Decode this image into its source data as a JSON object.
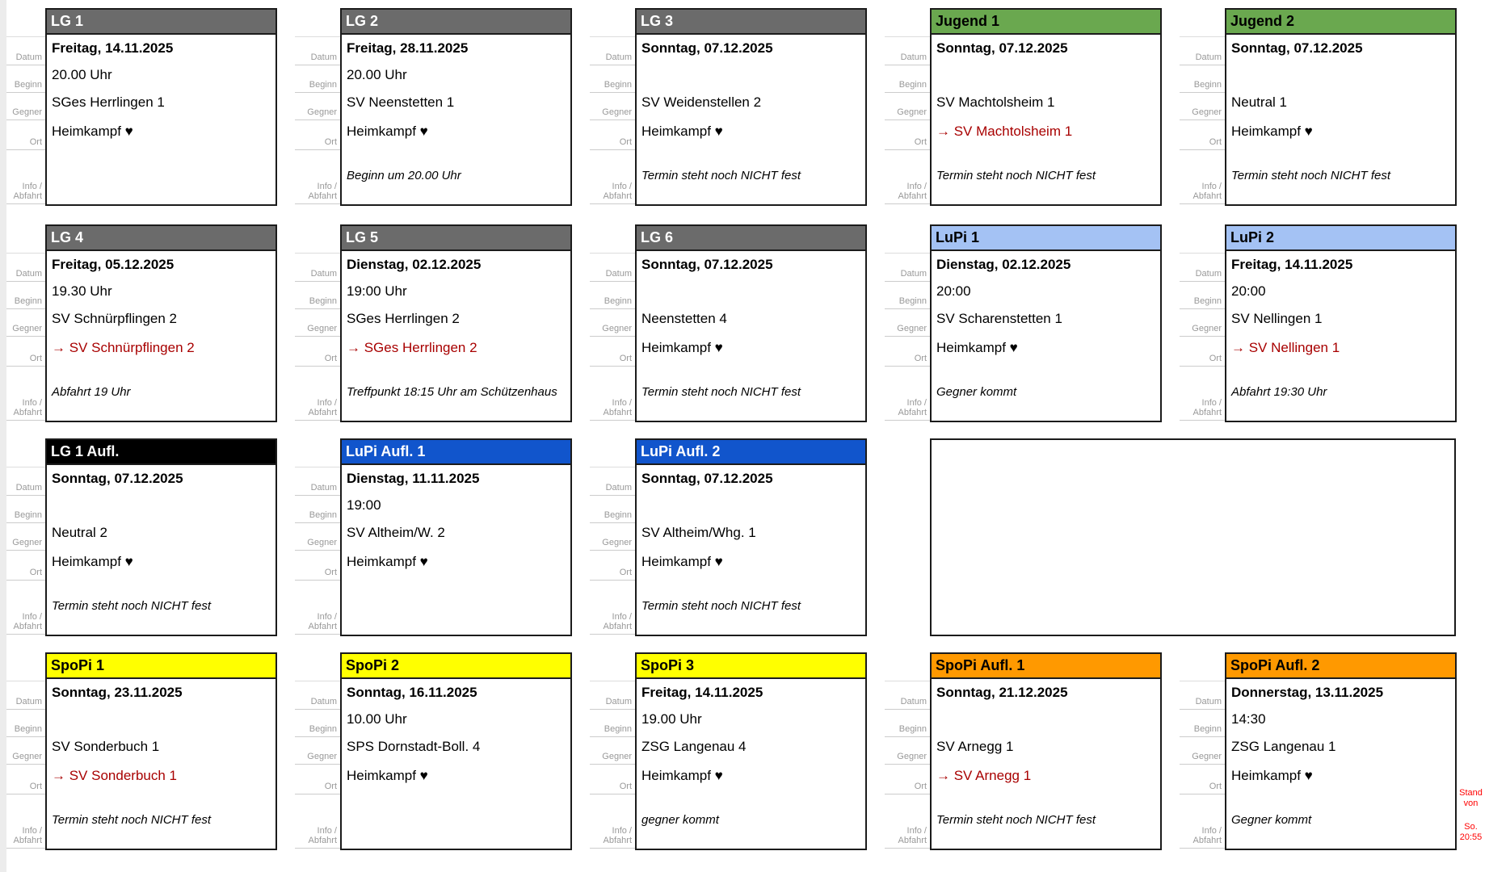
{
  "colors": {
    "header_gray": "#6b6b6b",
    "header_black": "#000000",
    "header_green": "#6aa84f",
    "header_lightblue": "#a4c2f4",
    "header_blue": "#1155cc",
    "header_yellow": "#ffff00",
    "header_orange": "#ff9900",
    "away_red": "#a80000",
    "note_red": "#ff0000",
    "label_gray": "#999999"
  },
  "row_labels": {
    "datum": "Datum",
    "beginn": "Beginn",
    "gegner": "Gegner",
    "ort": "Ort",
    "info_line1": "Info /",
    "info_line2": "Abfahrt"
  },
  "stand_note": {
    "part1": "Stand von",
    "part2": "So. 20:55"
  },
  "cards": [
    {
      "title": "LG 1",
      "datum": "Freitag, 14.11.2025",
      "beginn": "20.00 Uhr",
      "gegner": "SGes Herrlingen 1",
      "ort": "Heimkampf ♥",
      "info": ""
    },
    {
      "title": "LG 2",
      "datum": "Freitag, 28.11.2025",
      "beginn": "20.00 Uhr",
      "gegner": "SV Neenstetten 1",
      "ort": "Heimkampf ♥",
      "info": "Beginn um 20.00 Uhr"
    },
    {
      "title": "LG 3",
      "datum": "Sonntag, 07.12.2025",
      "beginn": "",
      "gegner": "SV Weidenstellen 2",
      "ort": "Heimkampf ♥",
      "info": "Termin steht noch NICHT fest"
    },
    {
      "title": "Jugend 1",
      "datum": "Sonntag, 07.12.2025",
      "beginn": "",
      "gegner": "SV Machtolsheim 1",
      "ort": "→ SV Machtolsheim 1",
      "info": "Termin steht noch NICHT fest"
    },
    {
      "title": "Jugend 2",
      "datum": "Sonntag, 07.12.2025",
      "beginn": "",
      "gegner": "Neutral 1",
      "ort": "Heimkampf ♥",
      "info": "Termin steht noch NICHT fest"
    },
    {
      "title": "LG 4",
      "datum": "Freitag, 05.12.2025",
      "beginn": "19.30 Uhr",
      "gegner": "SV Schnürpflingen 2",
      "ort": "→ SV Schnürpflingen 2",
      "info": "Abfahrt 19 Uhr"
    },
    {
      "title": "LG 5",
      "datum": "Dienstag, 02.12.2025",
      "beginn": "19:00 Uhr",
      "gegner": "SGes Herrlingen 2",
      "ort": "→ SGes Herrlingen 2",
      "info": "Treffpunkt 18:15 Uhr am Schützenhaus"
    },
    {
      "title": "LG 6",
      "datum": "Sonntag, 07.12.2025",
      "beginn": "",
      "gegner": "Neenstetten 4",
      "ort": "Heimkampf ♥",
      "info": "Termin steht noch NICHT fest"
    },
    {
      "title": "LuPi 1",
      "datum": "Dienstag, 02.12.2025",
      "beginn": "20:00",
      "gegner": "SV Scharenstetten 1",
      "ort": "Heimkampf ♥",
      "info": "Gegner kommt"
    },
    {
      "title": "LuPi 2",
      "datum": "Freitag, 14.11.2025",
      "beginn": "20:00",
      "gegner": "SV Nellingen 1",
      "ort": "→ SV Nellingen 1",
      "info": "Abfahrt 19:30 Uhr"
    },
    {
      "title": "LG 1 Aufl.",
      "datum": "Sonntag, 07.12.2025",
      "beginn": "",
      "gegner": "Neutral 2",
      "ort": "Heimkampf ♥",
      "info": "Termin steht noch NICHT fest"
    },
    {
      "title": "LuPi Aufl. 1",
      "datum": "Dienstag, 11.11.2025",
      "beginn": "19:00",
      "gegner": "SV Altheim/W. 2",
      "ort": "Heimkampf ♥",
      "info": ""
    },
    {
      "title": "LuPi Aufl. 2",
      "datum": "Sonntag, 07.12.2025",
      "beginn": "",
      "gegner": "SV Altheim/Whg. 1",
      "ort": "Heimkampf ♥",
      "info": "Termin steht noch NICHT fest"
    },
    {
      "title": "SpoPi 1",
      "datum": "Sonntag, 23.11.2025",
      "beginn": "",
      "gegner": "SV Sonderbuch 1",
      "ort": "→ SV Sonderbuch 1",
      "info": "Termin steht noch NICHT fest"
    },
    {
      "title": "SpoPi 2",
      "datum": "Sonntag, 16.11.2025",
      "beginn": "10.00 Uhr",
      "gegner": "SPS Dornstadt-Boll. 4",
      "ort": "Heimkampf ♥",
      "info": ""
    },
    {
      "title": "SpoPi 3",
      "datum": "Freitag, 14.11.2025",
      "beginn": "19.00 Uhr",
      "gegner": "ZSG Langenau 4",
      "ort": "Heimkampf ♥",
      "info": "gegner kommt"
    },
    {
      "title": "SpoPi Aufl. 1",
      "datum": "Sonntag, 21.12.2025",
      "beginn": "",
      "gegner": "SV Arnegg 1",
      "ort": "→ SV Arnegg 1",
      "info": "Termin steht noch NICHT fest"
    },
    {
      "title": "SpoPi Aufl. 2",
      "datum": "Donnerstag, 13.11.2025",
      "beginn": "14:30",
      "gegner": "ZSG Langenau 1",
      "ort": "Heimkampf ♥",
      "info": "Gegner kommt"
    }
  ]
}
